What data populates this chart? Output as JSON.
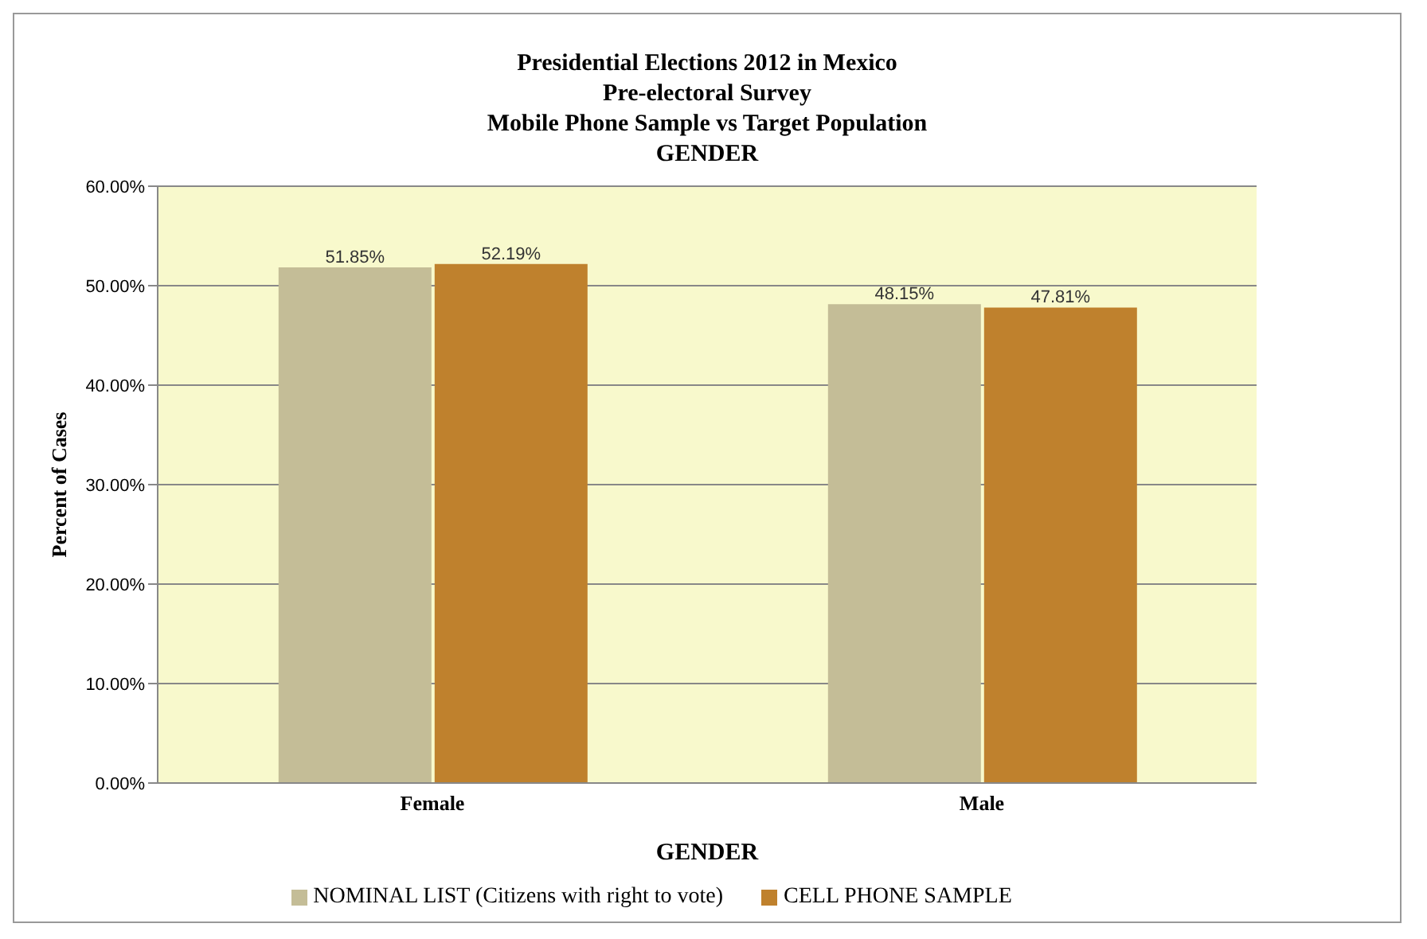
{
  "chart_data": {
    "type": "bar",
    "title": "Presidential Elections 2012 in Mexico\nPre-electoral Survey\nMobile Phone Sample vs Target Population\nGENDER",
    "xlabel": "GENDER",
    "ylabel": "Percent of Cases",
    "categories": [
      "Female",
      "Male"
    ],
    "series": [
      {
        "name": "NOMINAL LIST (Citizens with right to vote)",
        "color": "#c4bd97",
        "values": [
          51.85,
          48.15
        ],
        "value_labels": [
          "51.85%",
          "48.15%"
        ]
      },
      {
        "name": "CELL PHONE SAMPLE",
        "color": "#bf812d",
        "values": [
          52.19,
          47.81
        ],
        "value_labels": [
          "52.19%",
          "47.81%"
        ]
      }
    ],
    "ylim": [
      0,
      60
    ],
    "yticks": [
      {
        "value": 0,
        "label": "0.00%"
      },
      {
        "value": 10,
        "label": "10.00%"
      },
      {
        "value": 20,
        "label": "20.00%"
      },
      {
        "value": 30,
        "label": "30.00%"
      },
      {
        "value": 40,
        "label": "40.00%"
      },
      {
        "value": 50,
        "label": "50.00%"
      },
      {
        "value": 60,
        "label": "60.00%"
      }
    ],
    "grid": "y",
    "legend": "bottom"
  }
}
